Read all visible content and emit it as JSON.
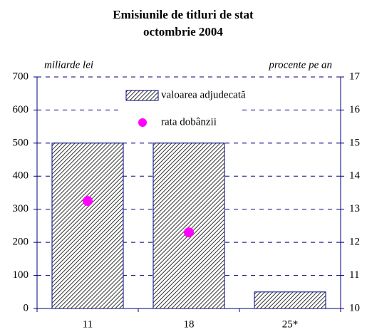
{
  "chart_data": {
    "type": "bar",
    "title": "Emisiunile de titluri de stat",
    "subtitle": "octombrie 2004",
    "y_label": "miliarde lei",
    "y2_label": "procente pe an",
    "categories": [
      "11",
      "18",
      "25*"
    ],
    "series": [
      {
        "name": "valoarea adjudecată",
        "type": "bar",
        "color": "#000080",
        "values": [
          500,
          500,
          50
        ]
      },
      {
        "name": "rata dobânzii",
        "type": "scatter",
        "axis": "y2",
        "color": "#ff00ff",
        "values": [
          13.25,
          12.3,
          null
        ]
      }
    ],
    "ylim": [
      0,
      700
    ],
    "yticks": [
      0,
      100,
      200,
      300,
      400,
      500,
      600,
      700
    ],
    "y2lim": [
      10,
      17
    ],
    "y2ticks": [
      10,
      11,
      12,
      13,
      14,
      15,
      16,
      17
    ],
    "grid": true,
    "legend": "top"
  }
}
